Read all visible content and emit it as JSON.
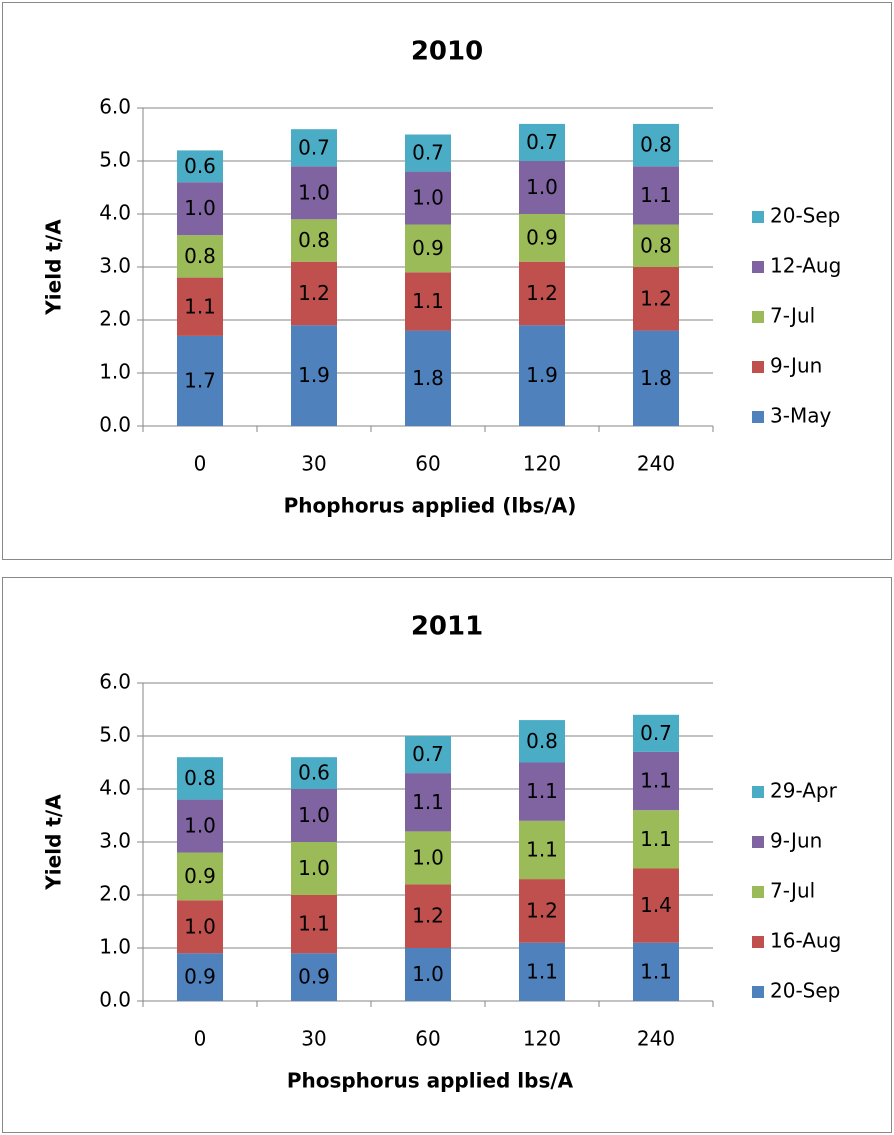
{
  "chart_data": [
    {
      "type": "stacked_bar",
      "title": "2010",
      "x_label": "Phophorus applied (lbs/A)",
      "y_label": "Yield t/A",
      "categories": [
        "0",
        "30",
        "60",
        "120",
        "240"
      ],
      "ylim": [
        0,
        6
      ],
      "yticks": [
        {
          "value": 0,
          "label": "0.0"
        },
        {
          "value": 1,
          "label": "1.0"
        },
        {
          "value": 2,
          "label": "2.0"
        },
        {
          "value": 3,
          "label": "3.0"
        },
        {
          "value": 4,
          "label": "4.0"
        },
        {
          "value": 5,
          "label": "5.0"
        },
        {
          "value": 6,
          "label": "6.0"
        }
      ],
      "grid": true,
      "legend": "right",
      "series": [
        {
          "name": "3-May",
          "color": "#4f81bd",
          "values": [
            1.7,
            1.9,
            1.8,
            1.9,
            1.8
          ],
          "value_labels": [
            "1.7",
            "1.9",
            "1.8",
            "1.9",
            "1.8"
          ]
        },
        {
          "name": "9-Jun",
          "color": "#c0504d",
          "values": [
            1.1,
            1.2,
            1.1,
            1.2,
            1.2
          ],
          "value_labels": [
            "1.1",
            "1.2",
            "1.1",
            "1.2",
            "1.2"
          ]
        },
        {
          "name": "7-Jul",
          "color": "#9bbb59",
          "values": [
            0.8,
            0.8,
            0.9,
            0.9,
            0.8
          ],
          "value_labels": [
            "0.8",
            "0.8",
            "0.9",
            "0.9",
            "0.8"
          ]
        },
        {
          "name": "12-Aug",
          "color": "#8064a2",
          "values": [
            1,
            1,
            1,
            1,
            1.1
          ],
          "value_labels": [
            "1.0",
            "1.0",
            "1.0",
            "1.0",
            "1.1"
          ]
        },
        {
          "name": "20-Sep",
          "color": "#4bacc6",
          "values": [
            0.6,
            0.7,
            0.7,
            0.7,
            0.8
          ],
          "value_labels": [
            "0.6",
            "0.7",
            "0.7",
            "0.7",
            "0.8"
          ]
        }
      ]
    },
    {
      "type": "stacked_bar",
      "title": "2011",
      "x_label": "Phosphorus applied lbs/A",
      "y_label": "Yield t/A",
      "categories": [
        "0",
        "30",
        "60",
        "120",
        "240"
      ],
      "ylim": [
        0,
        6
      ],
      "yticks": [
        {
          "value": 0,
          "label": "0.0"
        },
        {
          "value": 1,
          "label": "1.0"
        },
        {
          "value": 2,
          "label": "2.0"
        },
        {
          "value": 3,
          "label": "3.0"
        },
        {
          "value": 4,
          "label": "4.0"
        },
        {
          "value": 5,
          "label": "5.0"
        },
        {
          "value": 6,
          "label": "6.0"
        }
      ],
      "grid": true,
      "legend": "right",
      "series": [
        {
          "name": "20-Sep",
          "color": "#4f81bd",
          "values": [
            0.9,
            0.9,
            1,
            1.1,
            1.1
          ],
          "value_labels": [
            "0.9",
            "0.9",
            "1.0",
            "1.1",
            "1.1"
          ]
        },
        {
          "name": "16-Aug",
          "color": "#c0504d",
          "values": [
            1,
            1.1,
            1.2,
            1.2,
            1.4
          ],
          "value_labels": [
            "1.0",
            "1.1",
            "1.2",
            "1.2",
            "1.4"
          ]
        },
        {
          "name": "7-Jul",
          "color": "#9bbb59",
          "values": [
            0.9,
            1,
            1,
            1.1,
            1.1
          ],
          "value_labels": [
            "0.9",
            "1.0",
            "1.0",
            "1.1",
            "1.1"
          ]
        },
        {
          "name": "9-Jun",
          "color": "#8064a2",
          "values": [
            1,
            1,
            1.1,
            1.1,
            1.1
          ],
          "value_labels": [
            "1.0",
            "1.0",
            "1.1",
            "1.1",
            "1.1"
          ]
        },
        {
          "name": "29-Apr",
          "color": "#4bacc6",
          "values": [
            0.8,
            0.6,
            0.7,
            0.8,
            0.7
          ],
          "value_labels": [
            "0.8",
            "0.6",
            "0.7",
            "0.8",
            "0.7"
          ]
        }
      ]
    }
  ]
}
